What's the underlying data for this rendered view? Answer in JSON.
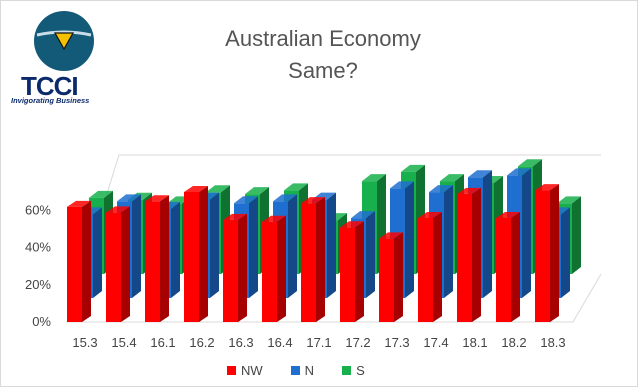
{
  "title": {
    "line1": "Australian Economy",
    "line2": "Same?"
  },
  "logo": {
    "name": "TCCI",
    "tagline": "Invigorating Business",
    "icon": "triangle-emblem-icon"
  },
  "colors": {
    "NW": "#ff0000",
    "N": "#1f6fd1",
    "S": "#18b04c"
  },
  "chart_data": {
    "type": "bar",
    "categories": [
      "15.3",
      "15.4",
      "16.1",
      "16.2",
      "16.3",
      "16.4",
      "17.1",
      "17.2",
      "17.3",
      "17.4",
      "18.1",
      "18.2",
      "18.3"
    ],
    "series": [
      {
        "name": "NW",
        "values": [
          62,
          59,
          65,
          70,
          55,
          54,
          64,
          51,
          45,
          56,
          69,
          56,
          71
        ]
      },
      {
        "name": "N",
        "values": [
          45,
          52,
          48,
          53,
          51,
          52,
          53,
          43,
          59,
          57,
          65,
          66,
          45
        ]
      },
      {
        "name": "S",
        "values": [
          41,
          40,
          38,
          44,
          43,
          45,
          29,
          50,
          55,
          50,
          49,
          58,
          38
        ]
      }
    ],
    "yticks": [
      "0%",
      "20%",
      "40%",
      "60%"
    ],
    "ylim": [
      0,
      70
    ],
    "legend": "bottom",
    "grid": false
  }
}
